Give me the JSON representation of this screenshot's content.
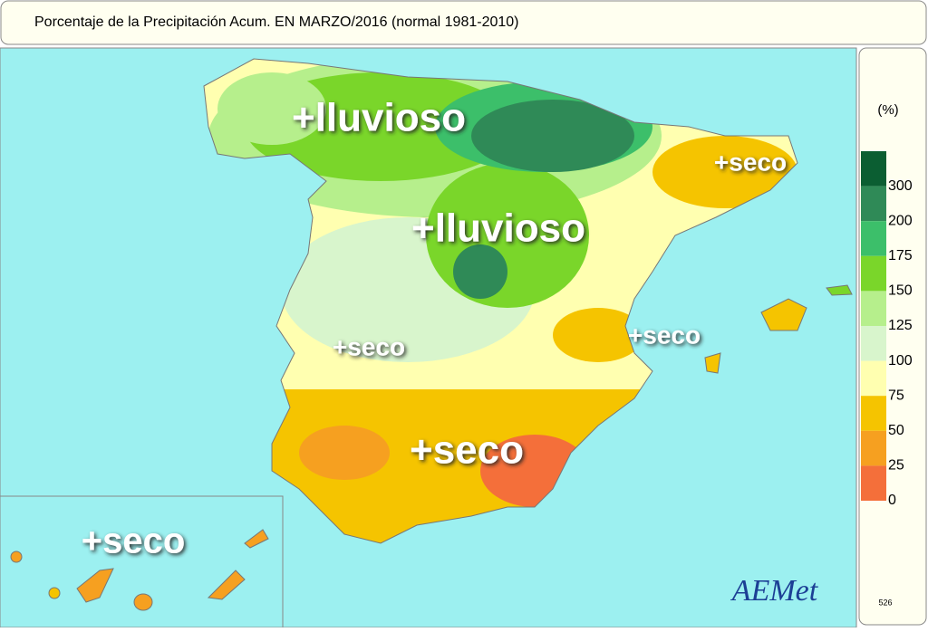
{
  "title": "Porcentaje de la Precipitación Acum. EN  MARZO/2016  (normal 1981-2010)",
  "annotations": [
    "+lluvioso",
    "+seco",
    "+lluvioso",
    "+seco",
    "+seco",
    "+seco",
    "+seco"
  ],
  "legend": {
    "unit": "(%)",
    "ticks": [
      300,
      200,
      175,
      150,
      125,
      100,
      75,
      50,
      25,
      0
    ],
    "colors": [
      "#0b5e32",
      "#2f8a57",
      "#3cbf6a",
      "#7ad62a",
      "#b6ef8c",
      "#d8f5cc",
      "#ffffb0",
      "#f5c400",
      "#f6a020",
      "#f46f3a"
    ]
  },
  "logo": "AEMet",
  "map_id": "526"
}
